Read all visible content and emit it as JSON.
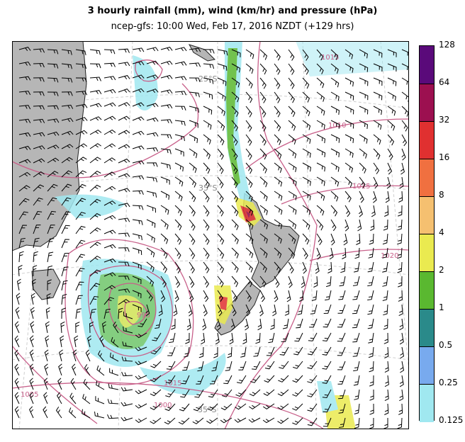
{
  "title": "3 hourly rainfall (mm), wind (km/hr) and pressure (hPa)",
  "subtitle": "ncep-gfs: 10:00 Wed, Feb 17, 2016 NZDT (+129 hrs)",
  "legend": {
    "labels": [
      "128",
      "64",
      "32",
      "16",
      "8",
      "4",
      "2",
      "1",
      "0.5",
      "0.25",
      "0.125"
    ],
    "colors": [
      "#5a0a7a",
      "#9c1050",
      "#e03030",
      "#f07040",
      "#f5c070",
      "#eaea50",
      "#5ab830",
      "#2a8a8a",
      "#78aaee",
      "#a0e8f0"
    ]
  },
  "map": {
    "isobar_labels": [
      "1015",
      "1010",
      "1015",
      "1020",
      "995",
      "1015",
      "1005",
      "1000"
    ],
    "latitude_labels": [
      "25°S",
      "35°S",
      "35°S"
    ]
  }
}
